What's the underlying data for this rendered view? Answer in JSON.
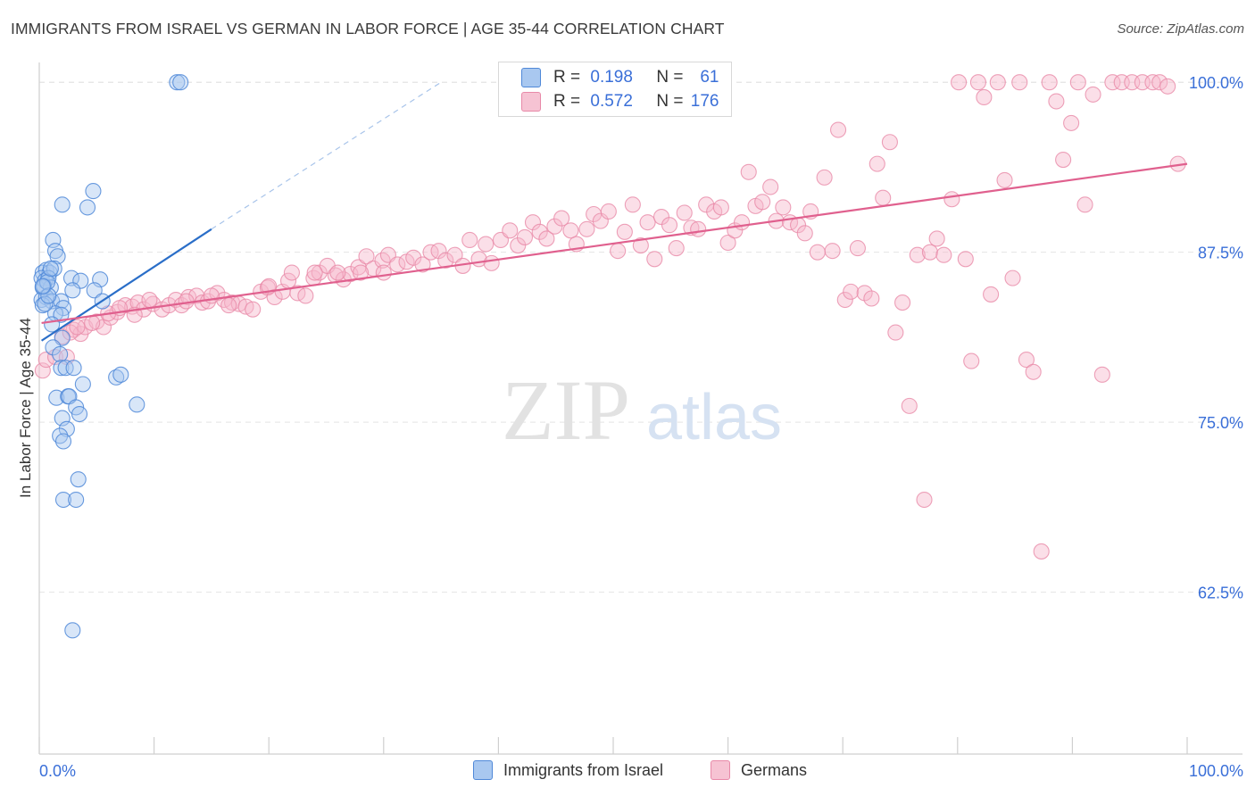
{
  "title": "IMMIGRANTS FROM ISRAEL VS GERMAN IN LABOR FORCE | AGE 35-44 CORRELATION CHART",
  "source": "Source: ZipAtlas.com",
  "watermark": {
    "zip": "ZIP",
    "atlas": "atlas"
  },
  "legend": {
    "r_label": "R =",
    "n_label": "N =",
    "israel": {
      "r": "0.198",
      "n": "61"
    },
    "germans": {
      "r": "0.572",
      "n": "176"
    }
  },
  "colors": {
    "israel_fill": "#a9c8f0",
    "israel_stroke": "#4f88d8",
    "israel_line": "#2a6ec8",
    "germans_fill": "#f6b8cb",
    "germans_stroke": "#e889a8",
    "germans_line": "#e0608e",
    "axis_text": "#3a6fd8"
  },
  "chart_data": {
    "type": "scatter",
    "title": "IMMIGRANTS FROM ISRAEL VS GERMAN IN LABOR FORCE | AGE 35-44 CORRELATION CHART",
    "xlabel": "",
    "ylabel": "In Labor Force | Age 35-44",
    "x_tick_labels": [
      "0.0%",
      "100.0%"
    ],
    "y_tick_labels": [
      "100.0%",
      "87.5%",
      "75.0%",
      "62.5%"
    ],
    "y_ticks": [
      100.0,
      87.5,
      75.0,
      62.5
    ],
    "xlim": [
      0,
      100
    ],
    "ylim": [
      50.6,
      100.8
    ],
    "grid": true,
    "series": [
      {
        "name": "Immigrants from Israel",
        "trend": {
          "x": [
            0.2,
            15
          ],
          "y": [
            81.0,
            89.2
          ],
          "dashed_to": {
            "x": 35,
            "y": 100.0
          }
        },
        "points": [
          [
            12,
            100.0
          ],
          [
            12.3,
            100.0
          ],
          [
            4.7,
            92.0
          ],
          [
            2.0,
            91.0
          ],
          [
            4.2,
            90.8
          ],
          [
            1.2,
            88.4
          ],
          [
            1.4,
            87.6
          ],
          [
            1.6,
            87.2
          ],
          [
            0.3,
            86.0
          ],
          [
            0.6,
            86.2
          ],
          [
            0.9,
            86.0
          ],
          [
            1.3,
            86.3
          ],
          [
            0.2,
            85.6
          ],
          [
            0.5,
            85.4
          ],
          [
            0.8,
            85.6
          ],
          [
            2.8,
            85.6
          ],
          [
            3.6,
            85.4
          ],
          [
            5.3,
            85.5
          ],
          [
            0.3,
            84.9
          ],
          [
            1.0,
            84.9
          ],
          [
            2.9,
            84.7
          ],
          [
            4.8,
            84.7
          ],
          [
            0.2,
            84.0
          ],
          [
            0.6,
            84.2
          ],
          [
            1.1,
            83.9
          ],
          [
            1.9,
            83.9
          ],
          [
            2.1,
            83.4
          ],
          [
            5.5,
            83.9
          ],
          [
            1.4,
            83.0
          ],
          [
            1.9,
            82.9
          ],
          [
            1.1,
            82.2
          ],
          [
            2.0,
            81.2
          ],
          [
            1.2,
            80.5
          ],
          [
            1.8,
            80.0
          ],
          [
            1.9,
            79.0
          ],
          [
            2.3,
            79.0
          ],
          [
            3.0,
            79.0
          ],
          [
            6.7,
            78.3
          ],
          [
            7.1,
            78.5
          ],
          [
            3.8,
            77.8
          ],
          [
            1.5,
            76.8
          ],
          [
            2.5,
            76.9
          ],
          [
            2.6,
            76.9
          ],
          [
            3.2,
            76.1
          ],
          [
            3.5,
            75.6
          ],
          [
            8.5,
            76.3
          ],
          [
            2.0,
            75.3
          ],
          [
            2.4,
            74.5
          ],
          [
            1.8,
            74.0
          ],
          [
            2.1,
            73.6
          ],
          [
            3.4,
            70.8
          ],
          [
            2.1,
            69.3
          ],
          [
            3.2,
            69.3
          ],
          [
            2.9,
            59.7
          ],
          [
            0.3,
            83.6
          ],
          [
            0.4,
            85.0
          ],
          [
            0.7,
            85.3
          ],
          [
            1.0,
            86.3
          ],
          [
            0.5,
            83.7
          ],
          [
            0.8,
            84.3
          ],
          [
            0.3,
            85.0
          ]
        ]
      },
      {
        "name": "Germans",
        "trend": {
          "x": [
            0.2,
            100
          ],
          "y": [
            82.3,
            94.0
          ]
        },
        "points": [
          [
            0.3,
            78.8
          ],
          [
            0.6,
            79.6
          ],
          [
            1.4,
            79.8
          ],
          [
            2.0,
            81.3
          ],
          [
            2.4,
            79.8
          ],
          [
            3.0,
            81.8
          ],
          [
            3.6,
            81.5
          ],
          [
            4.0,
            82.0
          ],
          [
            5.0,
            82.4
          ],
          [
            5.6,
            82.0
          ],
          [
            6.2,
            82.7
          ],
          [
            6.8,
            83.1
          ],
          [
            7.5,
            83.6
          ],
          [
            8.1,
            83.5
          ],
          [
            8.6,
            83.8
          ],
          [
            9.1,
            83.3
          ],
          [
            9.9,
            83.7
          ],
          [
            10.7,
            83.3
          ],
          [
            11.3,
            83.6
          ],
          [
            11.9,
            84.0
          ],
          [
            12.4,
            83.6
          ],
          [
            13.0,
            84.2
          ],
          [
            13.7,
            84.3
          ],
          [
            14.2,
            83.8
          ],
          [
            14.7,
            83.9
          ],
          [
            15.5,
            84.5
          ],
          [
            16.1,
            84.0
          ],
          [
            16.8,
            83.8
          ],
          [
            17.4,
            83.7
          ],
          [
            18.0,
            83.5
          ],
          [
            18.6,
            83.3
          ],
          [
            19.3,
            84.6
          ],
          [
            19.9,
            84.9
          ],
          [
            20.5,
            84.2
          ],
          [
            21.2,
            84.6
          ],
          [
            21.7,
            85.4
          ],
          [
            22.5,
            84.5
          ],
          [
            23.2,
            84.3
          ],
          [
            23.9,
            85.6
          ],
          [
            24.4,
            86.0
          ],
          [
            25.1,
            86.5
          ],
          [
            25.8,
            85.8
          ],
          [
            26.5,
            85.5
          ],
          [
            27.1,
            85.9
          ],
          [
            27.8,
            86.4
          ],
          [
            28.5,
            87.2
          ],
          [
            29.1,
            86.3
          ],
          [
            29.9,
            86.9
          ],
          [
            30.4,
            87.3
          ],
          [
            31.2,
            86.6
          ],
          [
            32.0,
            86.8
          ],
          [
            32.6,
            87.1
          ],
          [
            33.4,
            86.6
          ],
          [
            34.1,
            87.5
          ],
          [
            34.8,
            87.6
          ],
          [
            35.4,
            86.9
          ],
          [
            36.2,
            87.3
          ],
          [
            36.9,
            86.5
          ],
          [
            37.5,
            88.4
          ],
          [
            38.3,
            87.0
          ],
          [
            38.9,
            88.1
          ],
          [
            39.4,
            86.7
          ],
          [
            40.2,
            88.4
          ],
          [
            41.0,
            89.1
          ],
          [
            41.7,
            88.0
          ],
          [
            42.3,
            88.6
          ],
          [
            43.0,
            89.7
          ],
          [
            43.6,
            89.0
          ],
          [
            44.2,
            88.5
          ],
          [
            44.9,
            89.4
          ],
          [
            45.5,
            90.0
          ],
          [
            46.3,
            89.1
          ],
          [
            46.8,
            88.1
          ],
          [
            47.7,
            89.2
          ],
          [
            48.3,
            90.3
          ],
          [
            48.9,
            89.8
          ],
          [
            49.6,
            90.5
          ],
          [
            50.4,
            87.6
          ],
          [
            51.0,
            89.0
          ],
          [
            51.7,
            91.0
          ],
          [
            52.4,
            88.0
          ],
          [
            53.0,
            89.7
          ],
          [
            53.6,
            87.0
          ],
          [
            54.2,
            90.1
          ],
          [
            54.9,
            89.5
          ],
          [
            55.5,
            87.8
          ],
          [
            56.2,
            90.4
          ],
          [
            56.8,
            89.3
          ],
          [
            57.4,
            89.2
          ],
          [
            58.1,
            91.0
          ],
          [
            58.8,
            90.5
          ],
          [
            59.4,
            90.8
          ],
          [
            60.0,
            88.2
          ],
          [
            60.6,
            89.1
          ],
          [
            61.2,
            89.7
          ],
          [
            61.8,
            93.4
          ],
          [
            62.4,
            90.9
          ],
          [
            63.0,
            91.2
          ],
          [
            63.7,
            92.3
          ],
          [
            64.2,
            89.8
          ],
          [
            64.8,
            90.8
          ],
          [
            65.4,
            89.7
          ],
          [
            66.1,
            89.5
          ],
          [
            66.7,
            88.9
          ],
          [
            67.2,
            90.5
          ],
          [
            67.8,
            87.5
          ],
          [
            68.4,
            93.0
          ],
          [
            69.1,
            87.6
          ],
          [
            69.6,
            96.5
          ],
          [
            70.2,
            84.0
          ],
          [
            70.7,
            84.6
          ],
          [
            71.3,
            87.8
          ],
          [
            71.9,
            84.5
          ],
          [
            72.5,
            84.1
          ],
          [
            73.0,
            94.0
          ],
          [
            73.5,
            91.5
          ],
          [
            74.1,
            95.6
          ],
          [
            74.6,
            81.6
          ],
          [
            75.2,
            83.8
          ],
          [
            75.8,
            76.2
          ],
          [
            76.5,
            87.3
          ],
          [
            77.1,
            69.3
          ],
          [
            77.6,
            87.5
          ],
          [
            78.2,
            88.5
          ],
          [
            78.8,
            87.3
          ],
          [
            79.5,
            91.4
          ],
          [
            80.1,
            100.0
          ],
          [
            80.7,
            87.0
          ],
          [
            81.2,
            79.5
          ],
          [
            81.8,
            100.0
          ],
          [
            82.3,
            98.9
          ],
          [
            82.9,
            84.4
          ],
          [
            83.5,
            100.0
          ],
          [
            84.1,
            92.8
          ],
          [
            84.8,
            85.6
          ],
          [
            85.4,
            100.0
          ],
          [
            86.0,
            79.6
          ],
          [
            86.6,
            78.7
          ],
          [
            87.3,
            65.5
          ],
          [
            88.0,
            100.0
          ],
          [
            88.6,
            98.6
          ],
          [
            89.2,
            94.3
          ],
          [
            89.9,
            97.0
          ],
          [
            90.5,
            100.0
          ],
          [
            91.1,
            91.0
          ],
          [
            91.8,
            99.1
          ],
          [
            92.6,
            78.5
          ],
          [
            93.5,
            100.0
          ],
          [
            94.3,
            100.0
          ],
          [
            95.2,
            100.0
          ],
          [
            96.1,
            100.0
          ],
          [
            97.0,
            100.0
          ],
          [
            97.6,
            100.0
          ],
          [
            98.3,
            99.7
          ],
          [
            99.2,
            94.0
          ],
          [
            2.7,
            81.6
          ],
          [
            3.3,
            82.0
          ],
          [
            4.6,
            82.3
          ],
          [
            6.0,
            83.0
          ],
          [
            7.0,
            83.4
          ],
          [
            8.3,
            82.9
          ],
          [
            9.6,
            84.0
          ],
          [
            12.8,
            83.9
          ],
          [
            15.0,
            84.3
          ],
          [
            16.5,
            83.6
          ],
          [
            20.0,
            85.0
          ],
          [
            22.0,
            86.0
          ],
          [
            24.0,
            86.0
          ],
          [
            26.0,
            86.0
          ],
          [
            28.0,
            86.0
          ],
          [
            30.0,
            86.0
          ]
        ]
      }
    ]
  },
  "bottom_legend": {
    "israel": "Immigrants from Israel",
    "germans": "Germans"
  }
}
